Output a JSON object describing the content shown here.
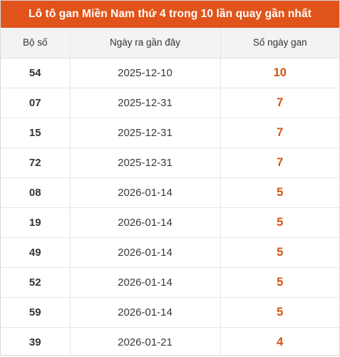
{
  "title": "Lô tô gan Miền Nam thứ 4 trong 10 lần quay gần nhất",
  "columns": [
    "Bộ số",
    "Ngày ra gần đây",
    "Số ngày gan"
  ],
  "colors": {
    "accent": "#e0541b",
    "days_text": "#d4520f",
    "header_bg": "#f3f3f3"
  },
  "rows": [
    {
      "number": "54",
      "date": "2025-12-10",
      "days": "10"
    },
    {
      "number": "07",
      "date": "2025-12-31",
      "days": "7"
    },
    {
      "number": "15",
      "date": "2025-12-31",
      "days": "7"
    },
    {
      "number": "72",
      "date": "2025-12-31",
      "days": "7"
    },
    {
      "number": "08",
      "date": "2026-01-14",
      "days": "5"
    },
    {
      "number": "19",
      "date": "2026-01-14",
      "days": "5"
    },
    {
      "number": "49",
      "date": "2026-01-14",
      "days": "5"
    },
    {
      "number": "52",
      "date": "2026-01-14",
      "days": "5"
    },
    {
      "number": "59",
      "date": "2026-01-14",
      "days": "5"
    },
    {
      "number": "39",
      "date": "2026-01-21",
      "days": "4"
    }
  ]
}
